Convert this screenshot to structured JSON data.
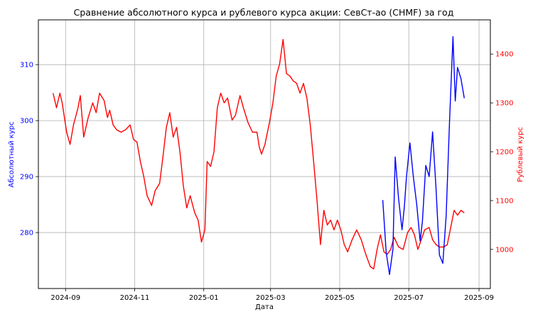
{
  "chart_data": {
    "type": "line",
    "title": "Сравнение абсолютного курса и рублевого курса акции: СевСт-ао (CHMF) за год",
    "xlabel": "Дата",
    "ylabel_left": "Абсолютный курс",
    "ylabel_right": "Рублевый курс",
    "grid": true,
    "x_range": [
      "2024-08-08",
      "2025-09-11"
    ],
    "x_ticks": [
      "2024-09",
      "2024-11",
      "2025-01",
      "2025-03",
      "2025-05",
      "2025-07",
      "2025-09"
    ],
    "y_left": {
      "range": [
        270,
        318
      ],
      "ticks": [
        280,
        290,
        300,
        310
      ],
      "color": "#0000ff"
    },
    "y_right": {
      "range": [
        920,
        1470
      ],
      "ticks": [
        1000,
        1100,
        1200,
        1300,
        1400
      ],
      "color": "#ff0000"
    },
    "series": [
      {
        "axis": "right",
        "color": "#ff0000",
        "points": [
          [
            "2024-08-21",
            1320
          ],
          [
            "2024-08-24",
            1290
          ],
          [
            "2024-08-27",
            1320
          ],
          [
            "2024-08-29",
            1300
          ],
          [
            "2024-09-02",
            1240
          ],
          [
            "2024-09-05",
            1215
          ],
          [
            "2024-09-08",
            1255
          ],
          [
            "2024-09-12",
            1290
          ],
          [
            "2024-09-14",
            1315
          ],
          [
            "2024-09-17",
            1230
          ],
          [
            "2024-09-21",
            1270
          ],
          [
            "2024-09-25",
            1300
          ],
          [
            "2024-09-28",
            1280
          ],
          [
            "2024-10-01",
            1320
          ],
          [
            "2024-10-05",
            1305
          ],
          [
            "2024-10-08",
            1270
          ],
          [
            "2024-10-10",
            1285
          ],
          [
            "2024-10-13",
            1255
          ],
          [
            "2024-10-16",
            1245
          ],
          [
            "2024-10-20",
            1240
          ],
          [
            "2024-10-24",
            1245
          ],
          [
            "2024-10-28",
            1255
          ],
          [
            "2024-10-31",
            1225
          ],
          [
            "2024-11-03",
            1220
          ],
          [
            "2024-11-06",
            1180
          ],
          [
            "2024-11-09",
            1150
          ],
          [
            "2024-11-12",
            1110
          ],
          [
            "2024-11-16",
            1090
          ],
          [
            "2024-11-19",
            1120
          ],
          [
            "2024-11-23",
            1135
          ],
          [
            "2024-11-26",
            1190
          ],
          [
            "2024-11-29",
            1250
          ],
          [
            "2024-12-02",
            1280
          ],
          [
            "2024-12-05",
            1230
          ],
          [
            "2024-12-08",
            1250
          ],
          [
            "2024-12-11",
            1200
          ],
          [
            "2024-12-14",
            1130
          ],
          [
            "2024-12-17",
            1085
          ],
          [
            "2024-12-20",
            1110
          ],
          [
            "2024-12-24",
            1075
          ],
          [
            "2024-12-27",
            1060
          ],
          [
            "2024-12-30",
            1015
          ],
          [
            "2025-01-02",
            1040
          ],
          [
            "2025-01-04",
            1180
          ],
          [
            "2025-01-07",
            1170
          ],
          [
            "2025-01-10",
            1200
          ],
          [
            "2025-01-13",
            1290
          ],
          [
            "2025-01-16",
            1320
          ],
          [
            "2025-01-19",
            1300
          ],
          [
            "2025-01-22",
            1310
          ],
          [
            "2025-01-26",
            1265
          ],
          [
            "2025-01-29",
            1275
          ],
          [
            "2025-02-02",
            1315
          ],
          [
            "2025-02-05",
            1290
          ],
          [
            "2025-02-09",
            1260
          ],
          [
            "2025-02-13",
            1240
          ],
          [
            "2025-02-17",
            1240
          ],
          [
            "2025-02-19",
            1210
          ],
          [
            "2025-02-21",
            1195
          ],
          [
            "2025-02-24",
            1215
          ],
          [
            "2025-02-28",
            1260
          ],
          [
            "2025-03-03",
            1300
          ],
          [
            "2025-03-06",
            1355
          ],
          [
            "2025-03-09",
            1380
          ],
          [
            "2025-03-12",
            1430
          ],
          [
            "2025-03-15",
            1360
          ],
          [
            "2025-03-18",
            1355
          ],
          [
            "2025-03-21",
            1345
          ],
          [
            "2025-03-24",
            1340
          ],
          [
            "2025-03-27",
            1320
          ],
          [
            "2025-03-30",
            1340
          ],
          [
            "2025-04-02",
            1310
          ],
          [
            "2025-04-05",
            1255
          ],
          [
            "2025-04-08",
            1180
          ],
          [
            "2025-04-11",
            1100
          ],
          [
            "2025-04-14",
            1010
          ],
          [
            "2025-04-17",
            1080
          ],
          [
            "2025-04-20",
            1050
          ],
          [
            "2025-04-23",
            1060
          ],
          [
            "2025-04-26",
            1040
          ],
          [
            "2025-04-29",
            1060
          ],
          [
            "2025-05-02",
            1040
          ],
          [
            "2025-05-05",
            1010
          ],
          [
            "2025-05-08",
            995
          ],
          [
            "2025-05-12",
            1020
          ],
          [
            "2025-05-16",
            1040
          ],
          [
            "2025-05-20",
            1020
          ],
          [
            "2025-05-24",
            990
          ],
          [
            "2025-05-28",
            965
          ],
          [
            "2025-05-31",
            960
          ],
          [
            "2025-06-03",
            1000
          ],
          [
            "2025-06-06",
            1030
          ],
          [
            "2025-06-09",
            995
          ],
          [
            "2025-06-12",
            990
          ],
          [
            "2025-06-15",
            1000
          ],
          [
            "2025-06-18",
            1025
          ],
          [
            "2025-06-22",
            1005
          ],
          [
            "2025-06-26",
            1000
          ],
          [
            "2025-06-30",
            1035
          ],
          [
            "2025-07-03",
            1045
          ],
          [
            "2025-07-06",
            1030
          ],
          [
            "2025-07-09",
            1000
          ],
          [
            "2025-07-12",
            1020
          ],
          [
            "2025-07-15",
            1040
          ],
          [
            "2025-07-19",
            1045
          ],
          [
            "2025-07-22",
            1020
          ],
          [
            "2025-07-25",
            1010
          ],
          [
            "2025-07-28",
            1005
          ],
          [
            "2025-08-01",
            1005
          ],
          [
            "2025-08-04",
            1010
          ],
          [
            "2025-08-07",
            1045
          ],
          [
            "2025-08-10",
            1080
          ],
          [
            "2025-08-13",
            1070
          ],
          [
            "2025-08-16",
            1080
          ],
          [
            "2025-08-19",
            1075
          ]
        ]
      },
      {
        "axis": "left",
        "color": "#0000ff",
        "points": [
          [
            "2025-06-08",
            285.8
          ],
          [
            "2025-06-11",
            276.5
          ],
          [
            "2025-06-14",
            272.5
          ],
          [
            "2025-06-17",
            277
          ],
          [
            "2025-06-19",
            293.5
          ],
          [
            "2025-06-22",
            286
          ],
          [
            "2025-06-25",
            280.5
          ],
          [
            "2025-06-27",
            284.5
          ],
          [
            "2025-06-29",
            290
          ],
          [
            "2025-07-02",
            296
          ],
          [
            "2025-07-05",
            290
          ],
          [
            "2025-07-08",
            285
          ],
          [
            "2025-07-11",
            278.5
          ],
          [
            "2025-07-13",
            282
          ],
          [
            "2025-07-16",
            292
          ],
          [
            "2025-07-19",
            290
          ],
          [
            "2025-07-22",
            298
          ],
          [
            "2025-07-25",
            288
          ],
          [
            "2025-07-28",
            276
          ],
          [
            "2025-07-31",
            274.5
          ],
          [
            "2025-08-03",
            283
          ],
          [
            "2025-08-06",
            300
          ],
          [
            "2025-08-09",
            315
          ],
          [
            "2025-08-11",
            303.5
          ],
          [
            "2025-08-13",
            309.5
          ],
          [
            "2025-08-16",
            307.5
          ],
          [
            "2025-08-19",
            304
          ]
        ]
      }
    ]
  }
}
